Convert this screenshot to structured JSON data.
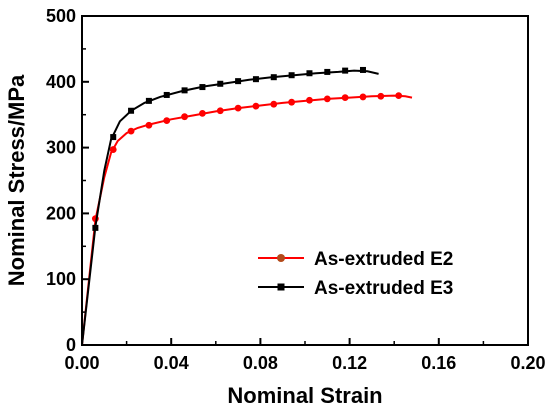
{
  "chart_data": {
    "type": "line",
    "xlabel": "Nominal Strain",
    "ylabel": "Nominal Stress/MPa",
    "xlim": [
      0.0,
      0.2
    ],
    "ylim": [
      0,
      500
    ],
    "x_ticks": [
      "0.00",
      "0.04",
      "0.08",
      "0.12",
      "0.16",
      "0.20"
    ],
    "y_ticks": [
      "0",
      "100",
      "200",
      "300",
      "400",
      "500"
    ],
    "grid": false,
    "legend_position": "lower-right",
    "series": [
      {
        "name": "As-extruded E2",
        "color": "#ff0000",
        "marker": "circle",
        "marker_color": "#ff0000",
        "legend_marker_color": "#b34a1a",
        "curve": [
          [
            0.0,
            0
          ],
          [
            0.006,
            190
          ],
          [
            0.01,
            255
          ],
          [
            0.013,
            292
          ],
          [
            0.016,
            310
          ],
          [
            0.02,
            322
          ],
          [
            0.025,
            330
          ],
          [
            0.03,
            335
          ],
          [
            0.04,
            343
          ],
          [
            0.05,
            349
          ],
          [
            0.06,
            355
          ],
          [
            0.07,
            360
          ],
          [
            0.08,
            364
          ],
          [
            0.09,
            368
          ],
          [
            0.1,
            371
          ],
          [
            0.11,
            374
          ],
          [
            0.12,
            376
          ],
          [
            0.13,
            378
          ],
          [
            0.14,
            379
          ],
          [
            0.145,
            378
          ],
          [
            0.148,
            376
          ]
        ],
        "markers": [
          [
            0.006,
            192
          ],
          [
            0.014,
            297
          ],
          [
            0.022,
            325
          ],
          [
            0.03,
            334
          ],
          [
            0.038,
            341
          ],
          [
            0.046,
            347
          ],
          [
            0.054,
            352
          ],
          [
            0.062,
            356
          ],
          [
            0.07,
            360
          ],
          [
            0.078,
            363
          ],
          [
            0.086,
            366
          ],
          [
            0.094,
            369
          ],
          [
            0.102,
            372
          ],
          [
            0.11,
            374
          ],
          [
            0.118,
            376
          ],
          [
            0.126,
            377
          ],
          [
            0.134,
            378
          ],
          [
            0.142,
            379
          ]
        ]
      },
      {
        "name": "As-extruded E3",
        "color": "#000000",
        "marker": "square",
        "marker_color": "#000000",
        "curve": [
          [
            0.0,
            0
          ],
          [
            0.006,
            180
          ],
          [
            0.01,
            265
          ],
          [
            0.013,
            312
          ],
          [
            0.017,
            340
          ],
          [
            0.022,
            356
          ],
          [
            0.028,
            368
          ],
          [
            0.035,
            377
          ],
          [
            0.045,
            386
          ],
          [
            0.055,
            393
          ],
          [
            0.065,
            398
          ],
          [
            0.075,
            403
          ],
          [
            0.085,
            407
          ],
          [
            0.095,
            410
          ],
          [
            0.105,
            413
          ],
          [
            0.115,
            415
          ],
          [
            0.122,
            417
          ],
          [
            0.128,
            416
          ],
          [
            0.133,
            412
          ]
        ],
        "markers": [
          [
            0.006,
            178
          ],
          [
            0.014,
            316
          ],
          [
            0.022,
            356
          ],
          [
            0.03,
            371
          ],
          [
            0.038,
            380
          ],
          [
            0.046,
            387
          ],
          [
            0.054,
            392
          ],
          [
            0.062,
            397
          ],
          [
            0.07,
            401
          ],
          [
            0.078,
            404
          ],
          [
            0.086,
            407
          ],
          [
            0.094,
            410
          ],
          [
            0.102,
            413
          ],
          [
            0.11,
            415
          ],
          [
            0.118,
            417
          ],
          [
            0.126,
            418
          ]
        ]
      }
    ]
  }
}
